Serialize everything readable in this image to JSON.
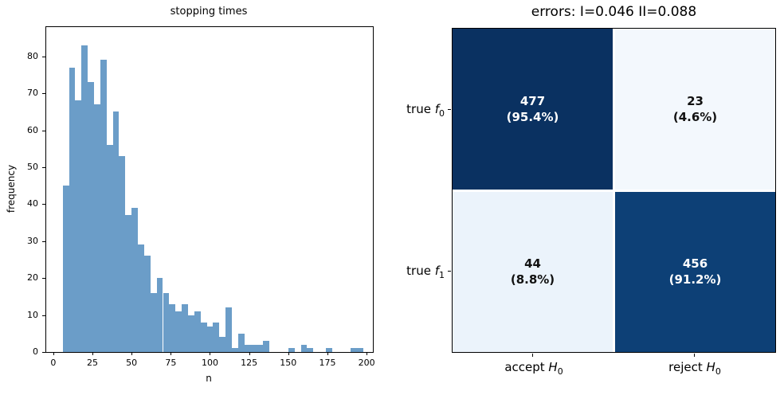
{
  "left_plot": {
    "title": "stopping times",
    "xlabel": "n",
    "ylabel": "frequency"
  },
  "right_plot": {
    "title": "errors: I=0.046 II=0.088",
    "rows": [
      {
        "prefix": "true ",
        "var": "f",
        "sub": "0"
      },
      {
        "prefix": "true ",
        "var": "f",
        "sub": "1"
      }
    ],
    "cols": [
      {
        "prefix": "accept ",
        "var": "H",
        "sub": "0"
      },
      {
        "prefix": "reject ",
        "var": "H",
        "sub": "0"
      }
    ],
    "cells": [
      {
        "count": "477",
        "pct": "(95.4%)",
        "bg": "#0a3161",
        "fg": "#ffffff"
      },
      {
        "count": "23",
        "pct": "(4.6%)",
        "bg": "#f3f8fd",
        "fg": "#111111"
      },
      {
        "count": "44",
        "pct": "(8.8%)",
        "bg": "#ebf3fb",
        "fg": "#111111"
      },
      {
        "count": "456",
        "pct": "(91.2%)",
        "bg": "#0d4076",
        "fg": "#ffffff"
      }
    ]
  },
  "chart_data": [
    {
      "type": "bar",
      "title": "stopping times",
      "xlabel": "n",
      "ylabel": "frequency",
      "bin_start": 6,
      "bin_width": 4,
      "values": [
        45,
        77,
        68,
        83,
        73,
        67,
        79,
        56,
        65,
        53,
        37,
        39,
        29,
        26,
        16,
        20,
        16,
        13,
        11,
        13,
        10,
        11,
        8,
        7,
        8,
        4,
        12,
        1,
        5,
        2,
        2,
        2,
        3,
        0,
        0,
        0,
        1,
        0,
        2,
        1,
        0,
        0,
        1,
        0,
        0,
        0,
        1,
        1
      ],
      "xticks": [
        0,
        25,
        50,
        75,
        100,
        125,
        150,
        175,
        200
      ],
      "yticks": [
        0,
        10,
        20,
        30,
        40,
        50,
        60,
        70,
        80
      ],
      "xlim": [
        -4.5,
        204
      ],
      "ylim": [
        0,
        87.9
      ],
      "grid": false,
      "legend": "none",
      "bar_color": "#6b9dc8"
    },
    {
      "type": "heatmap",
      "title": "errors: I=0.046 II=0.088",
      "row_labels": [
        "true f0",
        "true f1"
      ],
      "col_labels": [
        "accept H0",
        "reject H0"
      ],
      "values": [
        [
          477,
          23
        ],
        [
          44,
          456
        ]
      ],
      "percents": [
        [
          "95.4%",
          "4.6%"
        ],
        [
          "8.8%",
          "91.2%"
        ]
      ],
      "colors": [
        [
          "#0a3161",
          "#f3f8fd"
        ],
        [
          "#ebf3fb",
          "#0d4076"
        ]
      ],
      "text_colors": [
        [
          "#ffffff",
          "#111111"
        ],
        [
          "#111111",
          "#ffffff"
        ]
      ],
      "legend": "none"
    }
  ]
}
